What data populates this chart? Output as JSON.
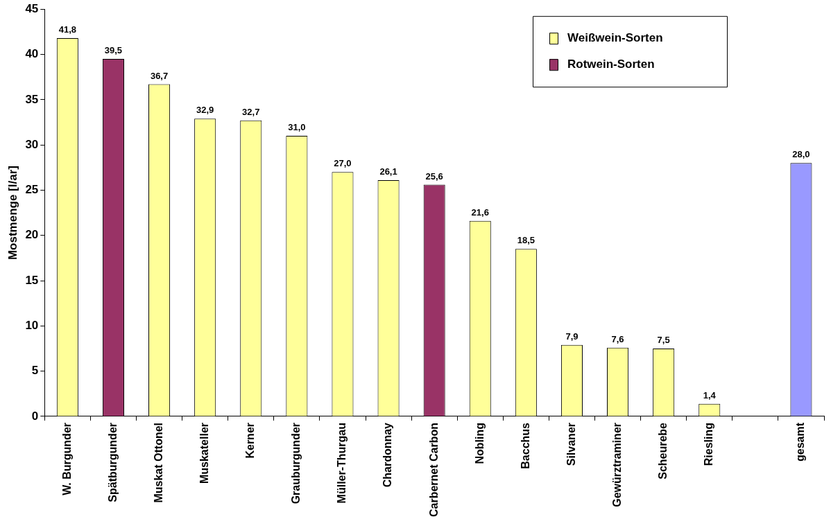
{
  "chart_data": {
    "type": "bar",
    "categories": [
      "W. Burgunder",
      "Spätburgunder",
      "Muskat Ottonel",
      "Muskateller",
      "Kerner",
      "Grauburgunder",
      "Müller-Thurgau",
      "Chardonnay",
      "Carbernet Carbon",
      "Nobling",
      "Bacchus",
      "Silvaner",
      "Gewürztraminer",
      "Scheurebe",
      "Riesling",
      null,
      "gesamt"
    ],
    "series": [
      {
        "name": "Weißwein-Sorten",
        "color": "#ffff99",
        "values": [
          41.8,
          null,
          36.7,
          32.9,
          32.7,
          31.0,
          27.0,
          26.1,
          null,
          21.6,
          18.5,
          7.9,
          7.6,
          7.5,
          1.4,
          null,
          null
        ],
        "value_labels": [
          "41,8",
          null,
          "36,7",
          "32,9",
          "32,7",
          "31,0",
          "27,0",
          "26,1",
          null,
          "21,6",
          "18,5",
          "7,9",
          "7,6",
          "7,5",
          "1,4",
          null,
          null
        ]
      },
      {
        "name": "Rotwein-Sorten",
        "color": "#993366",
        "values": [
          null,
          39.5,
          null,
          null,
          null,
          null,
          null,
          null,
          25.6,
          null,
          null,
          null,
          null,
          null,
          null,
          null,
          null
        ],
        "value_labels": [
          null,
          "39,5",
          null,
          null,
          null,
          null,
          null,
          null,
          "25,6",
          null,
          null,
          null,
          null,
          null,
          null,
          null,
          null
        ]
      },
      {
        "color": "#9999ff",
        "values": [
          null,
          null,
          null,
          null,
          null,
          null,
          null,
          null,
          null,
          null,
          null,
          null,
          null,
          null,
          null,
          null,
          28.0
        ],
        "value_labels": [
          null,
          null,
          null,
          null,
          null,
          null,
          null,
          null,
          null,
          null,
          null,
          null,
          null,
          null,
          null,
          null,
          "28,0"
        ]
      }
    ],
    "ylabel": "Mostmenge [l/ar]",
    "ylim": [
      0,
      45
    ],
    "yticks": [
      0,
      5,
      10,
      15,
      20,
      25,
      30,
      35,
      40,
      45
    ],
    "grid": false,
    "legend": "top right"
  }
}
